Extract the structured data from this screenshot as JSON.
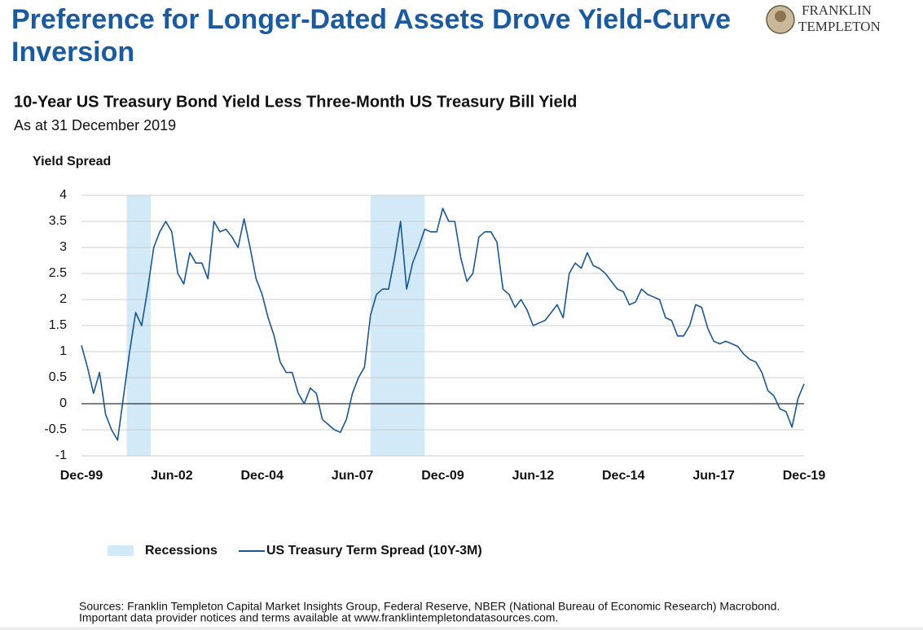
{
  "logo": [
    "FRANKLIN",
    "TEMPLETON"
  ],
  "chart_data": {
    "type": "line",
    "title": "Preference for Longer-Dated Assets Drove Yield-Curve Inversion",
    "subtitle": "10-Year US Treasury Bond Yield Less Three-Month US Treasury Bill Yield",
    "date_note": "As at 31 December 2019",
    "y_label": "Yield Spread",
    "source": [
      "Sources: Franklin Templeton Capital Market Insights Group, Federal Reserve, NBER (National Bureau of Economic Research) Macrobond.",
      "Important data provider notices and terms available at www.franklintempletondatasources.com."
    ],
    "xlim": [
      1999.917,
      2019.917
    ],
    "xticks": [
      {
        "value": 1999.917,
        "label": "Dec-99"
      },
      {
        "value": 2002.417,
        "label": "Jun-02"
      },
      {
        "value": 2004.917,
        "label": "Dec-04"
      },
      {
        "value": 2007.417,
        "label": "Jun-07"
      },
      {
        "value": 2009.917,
        "label": "Dec-09"
      },
      {
        "value": 2012.417,
        "label": "Jun-12"
      },
      {
        "value": 2014.917,
        "label": "Dec-14"
      },
      {
        "value": 2017.417,
        "label": "Jun-17"
      },
      {
        "value": 2019.917,
        "label": "Dec-19"
      }
    ],
    "ylim": [
      -1,
      4
    ],
    "yticks": [
      4,
      3.5,
      3,
      2.5,
      2,
      1.5,
      1,
      0.5,
      0,
      -0.5,
      -1
    ],
    "grid": true,
    "recessions": {
      "name": "Recessions",
      "color": "#d2e9f8",
      "ranges": [
        [
          2001.167,
          2001.833
        ],
        [
          2007.917,
          2009.417
        ]
      ]
    },
    "x": [
      1999.917,
      2000.083,
      2000.25,
      2000.417,
      2000.583,
      2000.75,
      2000.917,
      2001.083,
      2001.25,
      2001.417,
      2001.583,
      2001.75,
      2001.917,
      2002.083,
      2002.25,
      2002.417,
      2002.583,
      2002.75,
      2002.917,
      2003.083,
      2003.25,
      2003.417,
      2003.583,
      2003.75,
      2003.917,
      2004.083,
      2004.25,
      2004.417,
      2004.583,
      2004.75,
      2004.917,
      2005.083,
      2005.25,
      2005.417,
      2005.583,
      2005.75,
      2005.917,
      2006.083,
      2006.25,
      2006.417,
      2006.583,
      2006.75,
      2006.917,
      2007.083,
      2007.25,
      2007.417,
      2007.583,
      2007.75,
      2007.917,
      2008.083,
      2008.25,
      2008.417,
      2008.583,
      2008.75,
      2008.917,
      2009.083,
      2009.25,
      2009.417,
      2009.583,
      2009.75,
      2009.917,
      2010.083,
      2010.25,
      2010.417,
      2010.583,
      2010.75,
      2010.917,
      2011.083,
      2011.25,
      2011.417,
      2011.583,
      2011.75,
      2011.917,
      2012.083,
      2012.25,
      2012.417,
      2012.583,
      2012.75,
      2012.917,
      2013.083,
      2013.25,
      2013.417,
      2013.583,
      2013.75,
      2013.917,
      2014.083,
      2014.25,
      2014.417,
      2014.583,
      2014.75,
      2014.917,
      2015.083,
      2015.25,
      2015.417,
      2015.583,
      2015.75,
      2015.917,
      2016.083,
      2016.25,
      2016.417,
      2016.583,
      2016.75,
      2016.917,
      2017.083,
      2017.25,
      2017.417,
      2017.583,
      2017.75,
      2017.917,
      2018.083,
      2018.25,
      2018.417,
      2018.583,
      2018.75,
      2018.917,
      2019.083,
      2019.25,
      2019.417,
      2019.583,
      2019.75,
      2019.917
    ],
    "series": [
      {
        "name": "US Treasury Term Spread (10Y-3M)",
        "color": "#1a5693",
        "values": [
          1.12,
          0.7,
          0.2,
          0.6,
          -0.2,
          -0.5,
          -0.7,
          0.15,
          1.0,
          1.75,
          1.5,
          2.2,
          3.0,
          3.3,
          3.5,
          3.3,
          2.5,
          2.3,
          2.9,
          2.7,
          2.7,
          2.4,
          3.5,
          3.3,
          3.35,
          3.2,
          3.0,
          3.55,
          3.0,
          2.4,
          2.1,
          1.65,
          1.3,
          0.8,
          0.6,
          0.6,
          0.2,
          0.0,
          0.3,
          0.2,
          -0.3,
          -0.4,
          -0.5,
          -0.55,
          -0.3,
          0.2,
          0.5,
          0.7,
          1.7,
          2.1,
          2.2,
          2.2,
          2.8,
          3.5,
          2.2,
          2.7,
          3.0,
          3.35,
          3.3,
          3.3,
          3.75,
          3.5,
          3.5,
          2.8,
          2.35,
          2.5,
          3.2,
          3.3,
          3.3,
          3.1,
          2.2,
          2.1,
          1.85,
          2.0,
          1.8,
          1.5,
          1.55,
          1.6,
          1.75,
          1.9,
          1.65,
          2.5,
          2.7,
          2.6,
          2.9,
          2.65,
          2.6,
          2.5,
          2.35,
          2.2,
          2.15,
          1.9,
          1.95,
          2.2,
          2.1,
          2.05,
          2.0,
          1.65,
          1.6,
          1.3,
          1.3,
          1.5,
          1.9,
          1.85,
          1.45,
          1.2,
          1.15,
          1.2,
          1.15,
          1.1,
          0.95,
          0.85,
          0.8,
          0.6,
          0.25,
          0.15,
          -0.1,
          -0.15,
          -0.45,
          0.1,
          0.38
        ]
      }
    ]
  }
}
